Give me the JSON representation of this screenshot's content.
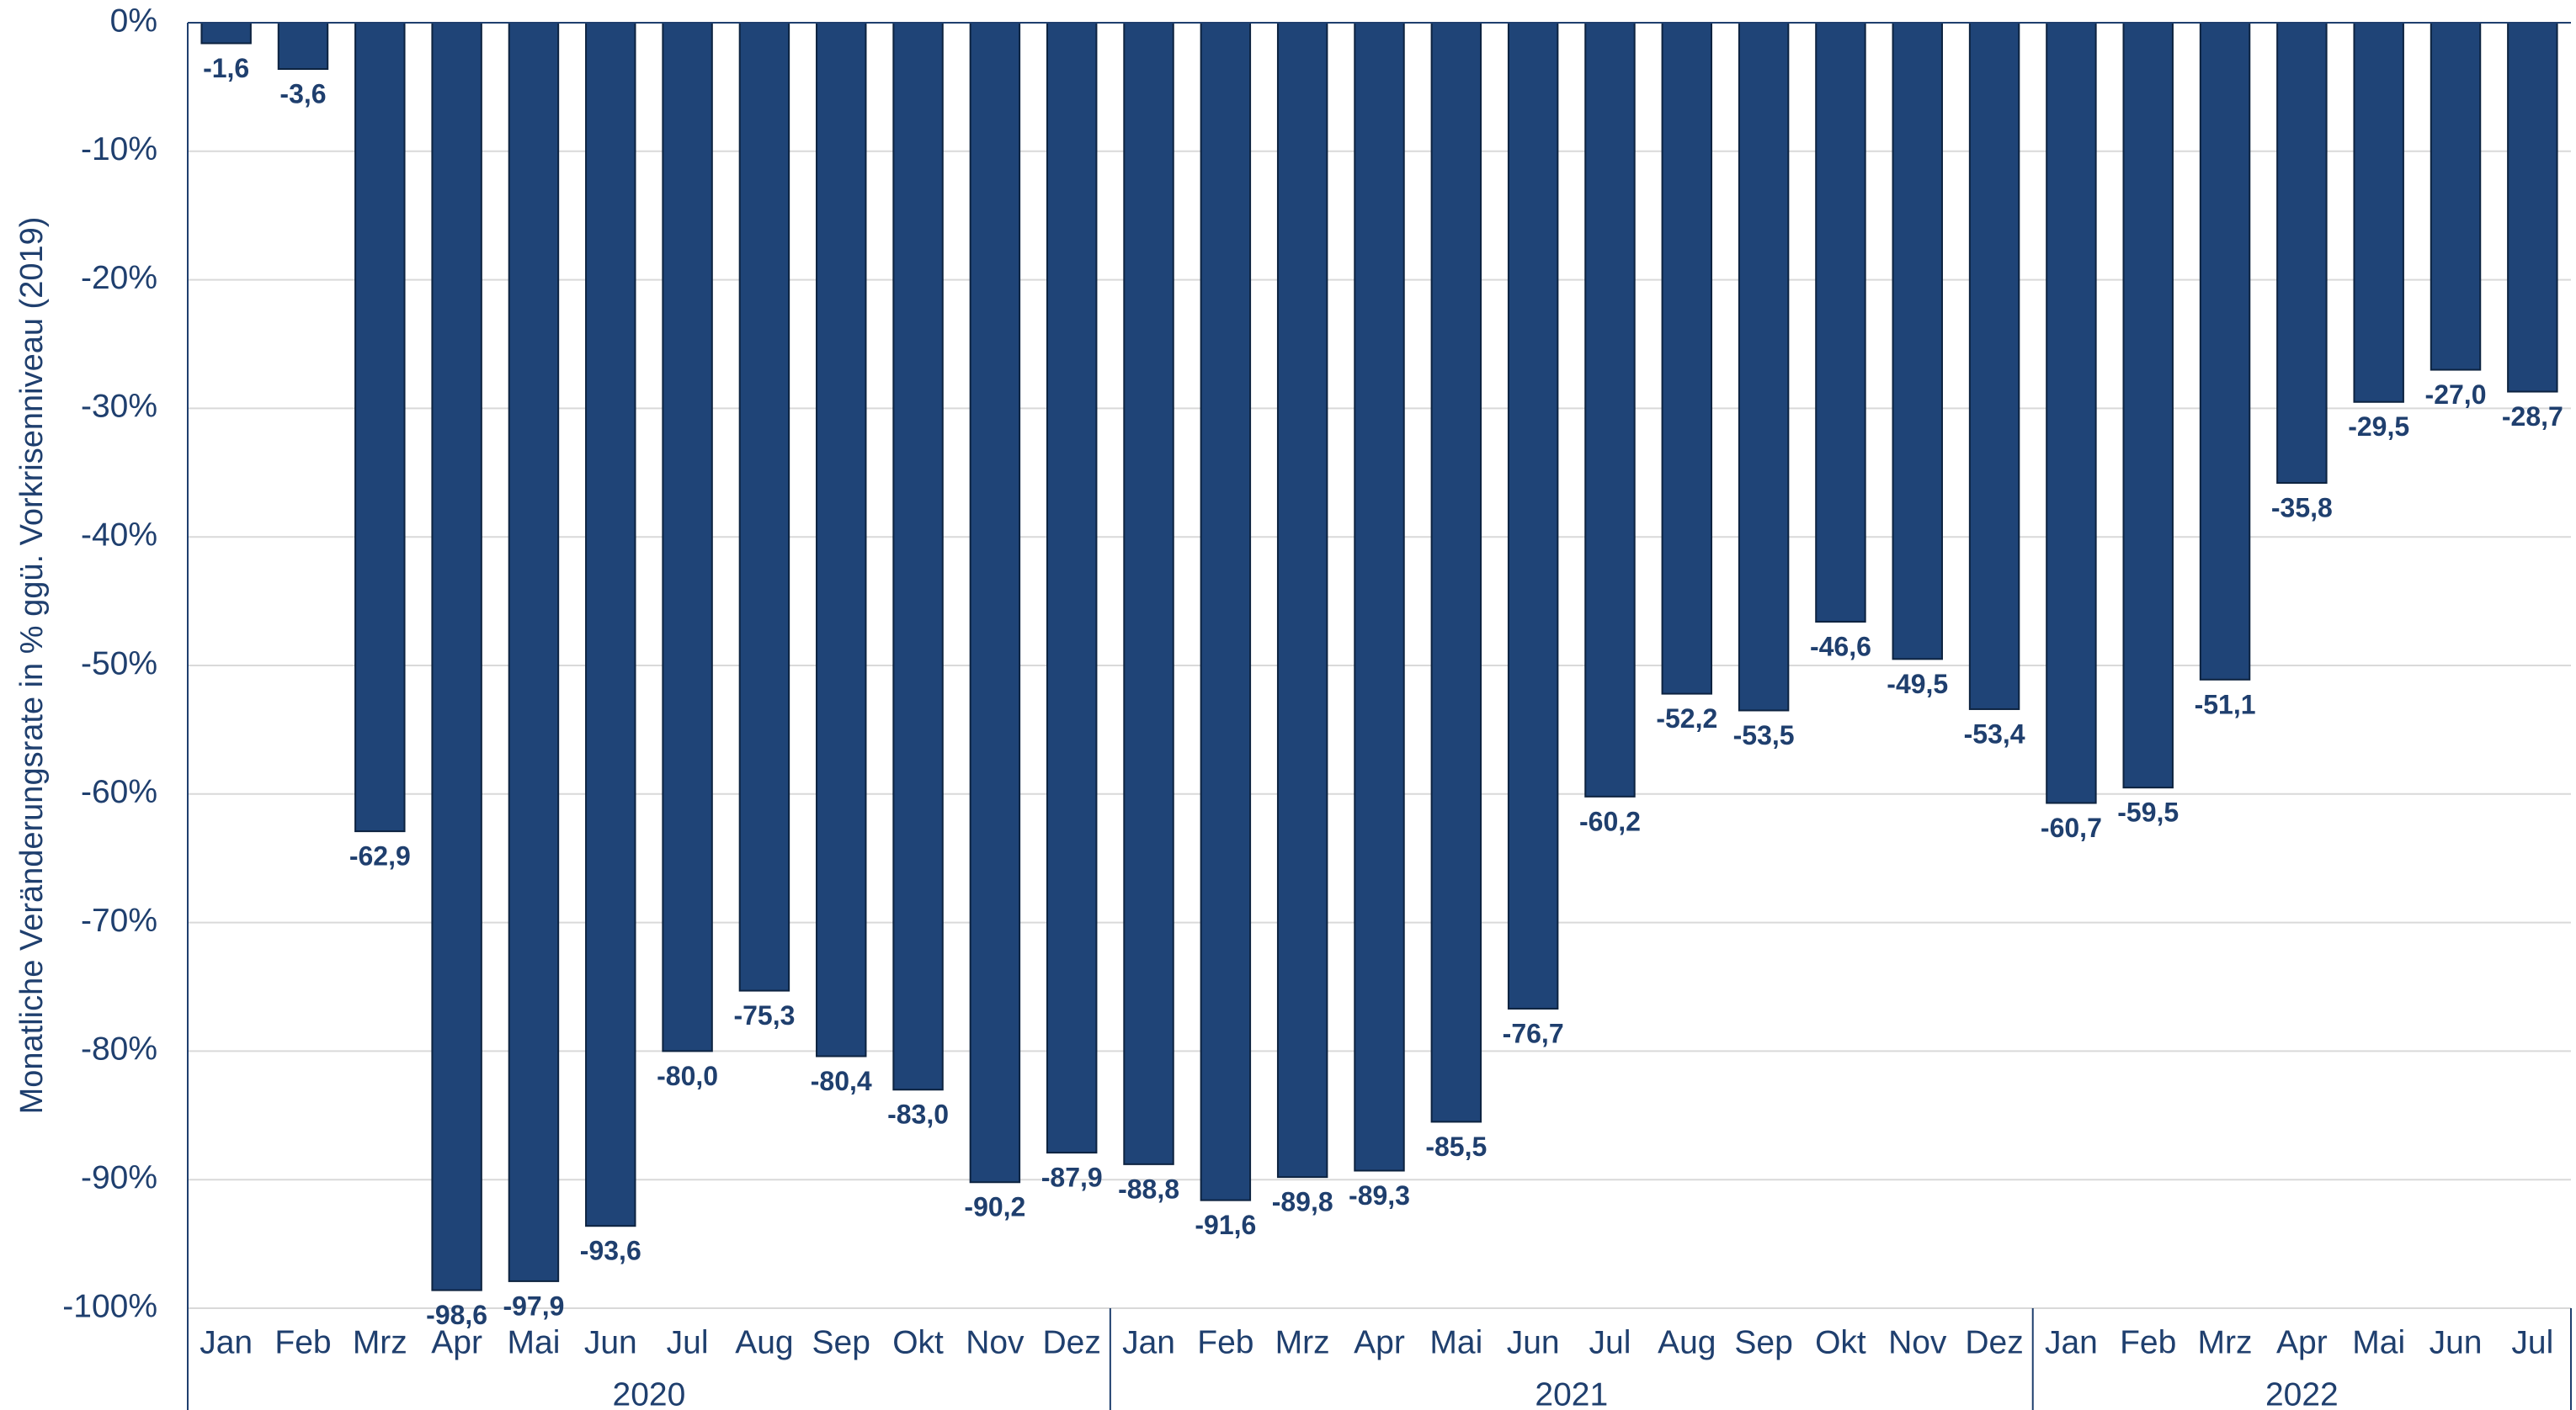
{
  "chart_data": {
    "type": "bar",
    "y_axis_label": "Monatliche Veränderungsrate in % ggü. Vorkrisenniveau (2019)",
    "category_groups": [
      {
        "name": "2020",
        "categories": [
          "Jan",
          "Feb",
          "Mrz",
          "Apr",
          "Mai",
          "Jun",
          "Jul",
          "Aug",
          "Sep",
          "Okt",
          "Nov",
          "Dez"
        ]
      },
      {
        "name": "2021",
        "categories": [
          "Jan",
          "Feb",
          "Mrz",
          "Apr",
          "Mai",
          "Jun",
          "Jul",
          "Aug",
          "Sep",
          "Okt",
          "Nov",
          "Dez"
        ]
      },
      {
        "name": "2022",
        "categories": [
          "Jan",
          "Feb",
          "Mrz",
          "Apr",
          "Mai",
          "Jun",
          "Jul"
        ]
      }
    ],
    "values": [
      -1.6,
      -3.6,
      -62.9,
      -98.6,
      -97.9,
      -93.6,
      -80.0,
      -75.3,
      -80.4,
      -83.0,
      -90.2,
      -87.9,
      -88.8,
      -91.6,
      -89.8,
      -89.3,
      -85.5,
      -76.7,
      -60.2,
      -52.2,
      -53.5,
      -46.6,
      -49.5,
      -53.4,
      -60.7,
      -59.5,
      -51.1,
      -35.8,
      -29.5,
      -27.0,
      -28.7
    ],
    "value_labels": [
      "-1,6",
      "-3,6",
      "-62,9",
      "-98,6",
      "-97,9",
      "-93,6",
      "-80,0",
      "-75,3",
      "-80,4",
      "-83,0",
      "-90,2",
      "-87,9",
      "-88,8",
      "-91,6",
      "-89,8",
      "-89,3",
      "-85,5",
      "-76,7",
      "-60,2",
      "-52,2",
      "-53,5",
      "-46,6",
      "-49,5",
      "-53,4",
      "-60,7",
      "-59,5",
      "-51,1",
      "-35,8",
      "-29,5",
      "-27,0",
      "-28,7"
    ],
    "color": "#1f4477",
    "ylim": [
      -100,
      0
    ],
    "yticks": [
      {
        "value": 0,
        "label": "0%"
      },
      {
        "value": -10,
        "label": "-10%"
      },
      {
        "value": -20,
        "label": "-20%"
      },
      {
        "value": -30,
        "label": "-30%"
      },
      {
        "value": -40,
        "label": "-40%"
      },
      {
        "value": -50,
        "label": "-50%"
      },
      {
        "value": -60,
        "label": "-60%"
      },
      {
        "value": -70,
        "label": "-70%"
      },
      {
        "value": -80,
        "label": "-80%"
      },
      {
        "value": -90,
        "label": "-90%"
      },
      {
        "value": -100,
        "label": "-100%"
      }
    ],
    "grid": true
  }
}
